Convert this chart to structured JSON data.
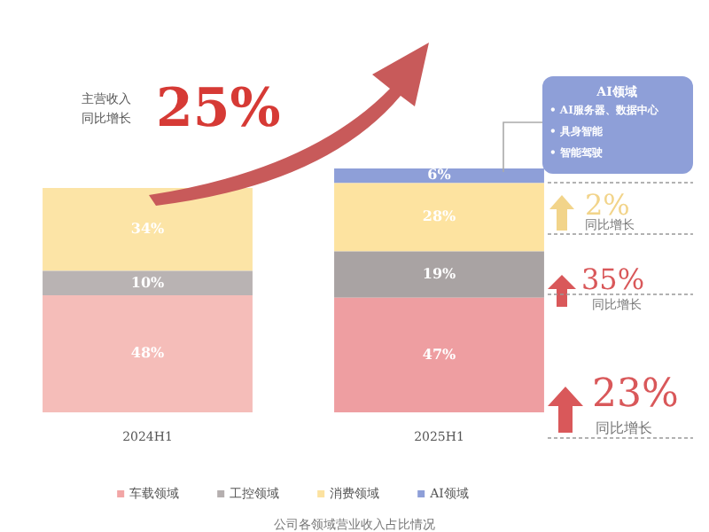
{
  "chart_data": {
    "type": "bar",
    "stacked": true,
    "categories": [
      "2024H1",
      "2025H1"
    ],
    "series": [
      {
        "name": "车载领域",
        "color": "#f2a6a6",
        "colors": [
          "#f5bdb9",
          "#ee9ea1"
        ],
        "values": [
          48,
          47
        ],
        "value_labels": [
          "48%",
          "47%"
        ]
      },
      {
        "name": "工控领域",
        "color": "#b5afaf",
        "colors": [
          "#b9b3b3",
          "#a9a3a3"
        ],
        "values": [
          10,
          19
        ],
        "value_labels": [
          "10%",
          "19%"
        ]
      },
      {
        "name": "消费领域",
        "color": "#fce2a0",
        "colors": [
          "#fce4a6",
          "#fde3a0"
        ],
        "values": [
          34,
          28
        ],
        "value_labels": [
          "34%",
          "28%"
        ]
      },
      {
        "name": "AI领域",
        "color": "#8e9fd8",
        "colors": [
          "#8e9fd8",
          "#8e9fd8"
        ],
        "values": [
          null,
          6
        ],
        "value_labels": [
          null,
          "6%"
        ]
      }
    ],
    "legend": "bottom",
    "grid": false,
    "tick_labels": "x",
    "annotations": [
      "主营收入",
      "同比增长",
      "25%",
      "AI领域",
      "• AI服务器、数据中心",
      "• 具身智能",
      "• 智能驾驶",
      "2%",
      "同比增长",
      "35%",
      "同比增长",
      "23%",
      "同比增长",
      "公司各领域营业收入占比情况"
    ]
  }
}
